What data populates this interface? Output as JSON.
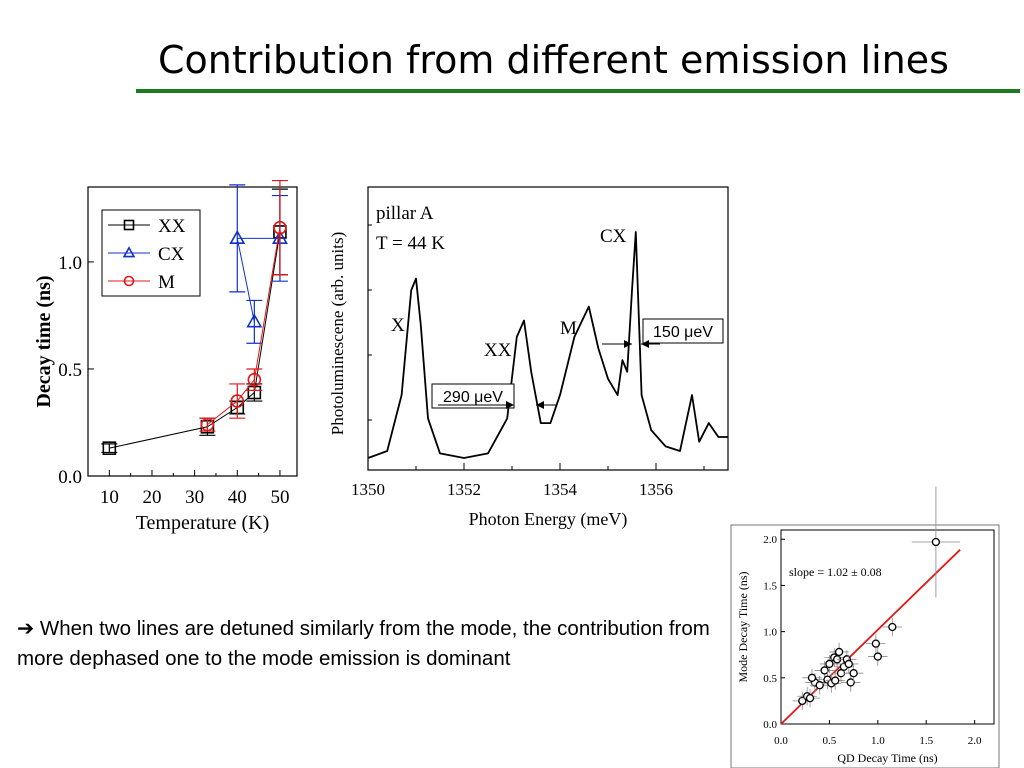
{
  "slide": {
    "title": "Contribution from different emission lines",
    "note_arrow": "➔",
    "note": "When two lines are detuned similarly from the mode, the contribution from more dephased one to the mode emission is dominant",
    "accent_color": "#1e7a1e"
  },
  "chart_data": [
    {
      "type": "scatter",
      "xlabel": "Temperature (K)",
      "ylabel": "Decay time (ns)",
      "xlim": [
        5,
        54
      ],
      "ylim": [
        0.0,
        1.35
      ],
      "xticks": [
        "10",
        "20",
        "30",
        "40",
        "50"
      ],
      "yticks": [
        "0.0",
        "0.5",
        "1.0"
      ],
      "legend_position": "top-left",
      "series": [
        {
          "name": "XX",
          "color": "#000000",
          "marker": "square",
          "x": [
            10,
            33,
            40,
            44,
            50
          ],
          "y": [
            0.13,
            0.23,
            0.32,
            0.39,
            1.14
          ],
          "err": [
            0.02,
            0.04,
            0.03,
            0.04,
            0.2
          ]
        },
        {
          "name": "CX",
          "color": "#1030c8",
          "marker": "triangle",
          "x": [
            44,
            40,
            50
          ],
          "y": [
            0.72,
            1.11,
            1.11
          ],
          "err": [
            0.1,
            0.25,
            0.2
          ]
        },
        {
          "name": "M",
          "color": "#e01818",
          "marker": "circle",
          "x": [
            33,
            40,
            44,
            50
          ],
          "y": [
            0.24,
            0.35,
            0.45,
            1.16
          ],
          "err": [
            0.03,
            0.08,
            0.05,
            0.22
          ]
        }
      ]
    },
    {
      "type": "line",
      "xlabel": "Photon Energy (meV)",
      "ylabel": "Photoluminescene (arb. units)",
      "xlim": [
        1350,
        1357.5
      ],
      "xticks": [
        "1350",
        "1352",
        "1354",
        "1356"
      ],
      "annotations": [
        "pillar A",
        "T = 44 K",
        "X",
        "XX",
        "M",
        "CX",
        "290 μeV",
        "150 μeV"
      ],
      "series": [
        {
          "x": [
            1350.0,
            1350.4,
            1350.7,
            1350.9,
            1351.0,
            1351.1,
            1351.25,
            1351.5,
            1352.0,
            1352.5,
            1352.9,
            1353.1,
            1353.25,
            1353.4,
            1353.6,
            1353.8,
            1354.0,
            1354.3,
            1354.6,
            1354.8,
            1355.0,
            1355.2,
            1355.3,
            1355.4,
            1355.5,
            1355.58,
            1355.7,
            1355.9,
            1356.2,
            1356.5,
            1356.75,
            1356.9,
            1357.1,
            1357.3,
            1357.5
          ],
          "y": [
            0.03,
            0.06,
            0.3,
            0.75,
            0.8,
            0.6,
            0.2,
            0.05,
            0.03,
            0.05,
            0.2,
            0.55,
            0.62,
            0.4,
            0.18,
            0.18,
            0.3,
            0.55,
            0.68,
            0.5,
            0.37,
            0.3,
            0.45,
            0.4,
            0.75,
            1.0,
            0.3,
            0.15,
            0.08,
            0.06,
            0.3,
            0.1,
            0.18,
            0.12,
            0.12
          ]
        }
      ]
    },
    {
      "type": "scatter",
      "xlabel": "QD Decay Time (ns)",
      "ylabel": "Mode Decay Time (ns)",
      "xlim": [
        0.0,
        2.2
      ],
      "ylim": [
        0.0,
        2.1
      ],
      "xticks": [
        "0.0",
        "0.5",
        "1.0",
        "1.5",
        "2.0"
      ],
      "yticks": [
        "0.0",
        "0.5",
        "1.0",
        "1.5",
        "2.0"
      ],
      "annotations": [
        "slope = 1.02 ± 0.08"
      ],
      "fit_line": {
        "slope": 1.02,
        "intercept": 0.0,
        "x": [
          0.0,
          1.85
        ],
        "color": "#e01818"
      },
      "series": [
        {
          "x": [
            0.22,
            0.27,
            0.3,
            0.35,
            0.32,
            0.4,
            0.45,
            0.48,
            0.5,
            0.52,
            0.55,
            0.56,
            0.58,
            0.6,
            0.62,
            0.65,
            0.68,
            0.7,
            0.72,
            0.75,
            0.98,
            1.0,
            1.15,
            1.6
          ],
          "y": [
            0.25,
            0.3,
            0.28,
            0.45,
            0.5,
            0.42,
            0.58,
            0.48,
            0.65,
            0.44,
            0.72,
            0.47,
            0.7,
            0.78,
            0.55,
            0.62,
            0.7,
            0.65,
            0.45,
            0.55,
            0.87,
            0.73,
            1.05,
            1.97
          ],
          "color": "#000000",
          "marker": "circle"
        }
      ]
    }
  ]
}
